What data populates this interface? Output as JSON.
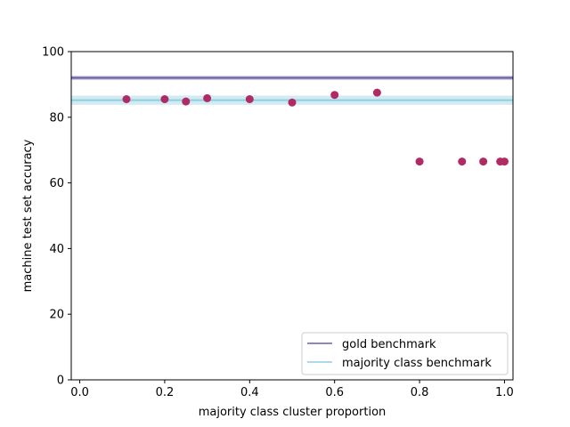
{
  "chart_data": {
    "type": "scatter",
    "xlabel": "majority class cluster proportion",
    "ylabel": "machine test set accuracy",
    "xlim": [
      -0.02,
      1.02
    ],
    "ylim": [
      0,
      100
    ],
    "xticks": [
      0.0,
      0.2,
      0.4,
      0.6,
      0.8,
      1.0
    ],
    "xtick_labels": [
      "0.0",
      "0.2",
      "0.4",
      "0.6",
      "0.8",
      "1.0"
    ],
    "yticks": [
      0,
      20,
      40,
      60,
      80,
      100
    ],
    "ytick_labels": [
      "0",
      "20",
      "40",
      "60",
      "80",
      "100"
    ],
    "grid": false,
    "legend_position": "bottom-right",
    "series": [
      {
        "kind": "points",
        "color": "#b02a64",
        "x": [
          0.11,
          0.2,
          0.25,
          0.3,
          0.4,
          0.5,
          0.6,
          0.7,
          0.8,
          0.9,
          0.95,
          0.99,
          1.0
        ],
        "y": [
          85.5,
          85.5,
          84.8,
          85.8,
          85.5,
          84.5,
          86.8,
          87.5,
          66.5,
          66.5,
          66.5,
          66.5,
          66.5
        ]
      }
    ],
    "benchmarks": [
      {
        "name": "gold benchmark",
        "value": 92.0,
        "band": [
          91.4,
          92.6
        ],
        "color": "#6b5fa3",
        "band_color": "#b9b3d4"
      },
      {
        "name": "majority class benchmark",
        "value": 85.2,
        "band": [
          83.8,
          86.6
        ],
        "color": "#8ecfe0",
        "band_color": "#cde8ef"
      }
    ]
  }
}
